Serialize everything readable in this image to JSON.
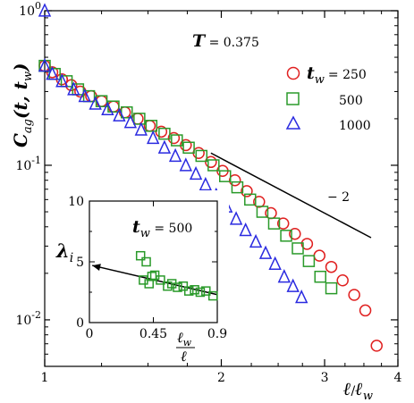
{
  "chart_data": [
    {
      "type": "scatter",
      "title": "T = 0.375",
      "title_parts": {
        "var": "T",
        "rest": " = 0.375"
      },
      "xlabel": "ℓ/ℓw",
      "xlabel_parts": {
        "num": "ℓ",
        "den": "ℓ",
        "den_sub": "w",
        "slash": "/"
      },
      "ylabel": "Cag(t, tw)",
      "ylabel_parts": {
        "main": "C",
        "sub": "ag",
        "args": "(t, t",
        "args_sub": "w",
        "close": ")"
      },
      "xscale": "log",
      "yscale": "log",
      "xlim": [
        1,
        4
      ],
      "ylim": [
        0.005,
        1.0
      ],
      "xticks": [
        1,
        2,
        3,
        4
      ],
      "xtick_labels": [
        "1",
        "2",
        "3",
        "4"
      ],
      "yticks": [
        1.0,
        0.1,
        0.01
      ],
      "ytick_labels": [
        {
          "base": "10",
          "exp": "0"
        },
        {
          "base": "10",
          "exp": "-1"
        },
        {
          "base": "10",
          "exp": "-2"
        }
      ],
      "legend": {
        "placement": "top-right",
        "header_parts": {
          "var": "t",
          "sub": "w"
        },
        "entries": [
          {
            "label_prefix": "= 250",
            "marker": "circle"
          },
          {
            "label_prefix": "500",
            "marker": "square"
          },
          {
            "label_prefix": "1000",
            "marker": "triangle"
          }
        ]
      },
      "series": [
        {
          "name": "250",
          "color": "#e02020",
          "marker": "circle",
          "x": [
            1.0,
            1.03,
            1.07,
            1.11,
            1.15,
            1.2,
            1.25,
            1.31,
            1.37,
            1.44,
            1.51,
            1.58,
            1.66,
            1.74,
            1.83,
            1.92,
            2.01,
            2.11,
            2.21,
            2.32,
            2.43,
            2.55,
            2.67,
            2.8,
            2.94,
            3.08,
            3.22,
            3.37,
            3.52,
            3.68
          ],
          "y": [
            0.44,
            0.4,
            0.36,
            0.33,
            0.3,
            0.28,
            0.26,
            0.24,
            0.22,
            0.2,
            0.18,
            0.165,
            0.15,
            0.135,
            0.12,
            0.105,
            0.092,
            0.08,
            0.068,
            0.058,
            0.049,
            0.042,
            0.036,
            0.031,
            0.026,
            0.022,
            0.018,
            0.0145,
            0.0115,
            0.0068
          ]
        },
        {
          "name": "500",
          "color": "#2a9a2a",
          "marker": "square",
          "x": [
            1.0,
            1.04,
            1.09,
            1.14,
            1.19,
            1.25,
            1.31,
            1.38,
            1.45,
            1.52,
            1.6,
            1.68,
            1.76,
            1.85,
            1.94,
            2.03,
            2.13,
            2.24,
            2.35,
            2.46,
            2.58,
            2.7,
            2.82,
            2.95,
            3.08
          ],
          "y": [
            0.44,
            0.39,
            0.35,
            0.31,
            0.28,
            0.26,
            0.24,
            0.22,
            0.2,
            0.18,
            0.16,
            0.145,
            0.13,
            0.115,
            0.1,
            0.085,
            0.072,
            0.06,
            0.05,
            0.042,
            0.035,
            0.029,
            0.024,
            0.019,
            0.016
          ]
        },
        {
          "name": "1000",
          "color": "#2a2ae0",
          "marker": "triangle",
          "x": [
            1.0,
            1.0,
            1.03,
            1.07,
            1.12,
            1.17,
            1.22,
            1.28,
            1.34,
            1.4,
            1.46,
            1.53,
            1.6,
            1.67,
            1.74,
            1.81,
            1.88,
            1.96,
            2.04,
            2.12,
            2.2,
            2.29,
            2.38,
            2.47,
            2.56,
            2.65,
            2.74
          ],
          "y": [
            1.0,
            0.44,
            0.39,
            0.35,
            0.31,
            0.28,
            0.25,
            0.23,
            0.21,
            0.19,
            0.17,
            0.15,
            0.13,
            0.115,
            0.1,
            0.088,
            0.075,
            0.064,
            0.054,
            0.045,
            0.038,
            0.032,
            0.027,
            0.023,
            0.019,
            0.0165,
            0.014
          ]
        }
      ],
      "annotations": [
        {
          "type": "slope-line",
          "label": "− 2",
          "x": [
            1.92,
            3.6
          ],
          "y": [
            0.12,
            0.034
          ]
        }
      ]
    },
    {
      "type": "scatter",
      "title": "tw = 500",
      "title_parts": {
        "var": "t",
        "sub": "w",
        "rest": " = 500"
      },
      "xlabel": "ℓw/ℓ",
      "xlabel_parts": {
        "num": "ℓ",
        "num_sub": "w",
        "den": "ℓ"
      },
      "ylabel": "λi",
      "ylabel_parts": {
        "main": "λ",
        "sub": "i"
      },
      "xlim": [
        0,
        0.9
      ],
      "ylim": [
        0,
        10
      ],
      "xticks": [
        0,
        0.45,
        0.9
      ],
      "xtick_labels": [
        "0",
        "0.45",
        "0.9"
      ],
      "yticks": [
        0,
        5,
        10
      ],
      "ytick_labels": [
        "0",
        "5",
        "10"
      ],
      "series": [
        {
          "name": "500",
          "color": "#2a9a2a",
          "marker": "square",
          "x": [
            0.36,
            0.38,
            0.4,
            0.44,
            0.46,
            0.42,
            0.5,
            0.55,
            0.58,
            0.62,
            0.66,
            0.7,
            0.74,
            0.78,
            0.82,
            0.87
          ],
          "y": [
            5.5,
            3.5,
            5.0,
            3.8,
            3.9,
            3.2,
            3.5,
            3.0,
            3.2,
            2.9,
            3.0,
            2.6,
            2.7,
            2.5,
            2.6,
            2.2
          ]
        }
      ],
      "annotations": [
        {
          "type": "fit-line-arrow",
          "x": [
            0.9,
            0.02
          ],
          "y": [
            2.3,
            4.7
          ]
        }
      ]
    }
  ]
}
